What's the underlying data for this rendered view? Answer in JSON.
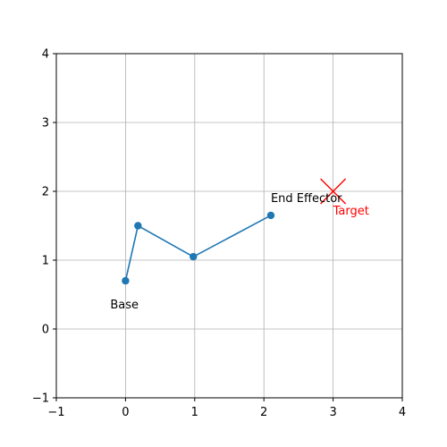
{
  "chart_data": {
    "type": "line",
    "title": "",
    "xlabel": "",
    "ylabel": "",
    "xlim": [
      -1,
      4
    ],
    "ylim": [
      -1,
      4
    ],
    "x_ticks": [
      -1,
      0,
      1,
      2,
      3,
      4
    ],
    "y_ticks": [
      -1,
      0,
      1,
      2,
      3,
      4
    ],
    "grid": true,
    "aspect": "equal",
    "series": [
      {
        "color": "#1f77b4",
        "marker": "circle",
        "points": [
          {
            "x": 0.0,
            "y": 0.7
          },
          {
            "x": 0.18,
            "y": 1.5
          },
          {
            "x": 0.98,
            "y": 1.05
          },
          {
            "x": 2.1,
            "y": 1.65
          }
        ]
      }
    ],
    "target": {
      "x": 3.0,
      "y": 2.0,
      "color": "#ff0000",
      "marker": "x"
    },
    "annotations": [
      {
        "id": "base",
        "text": "Base",
        "anchor_x": 0.0,
        "anchor_y": 0.7,
        "color": "#000000"
      },
      {
        "id": "end-effector",
        "text": "End Effector",
        "anchor_x": 2.1,
        "anchor_y": 1.65,
        "color": "#000000"
      },
      {
        "id": "target",
        "text": "Target",
        "anchor_x": 3.0,
        "anchor_y": 2.0,
        "color": "#ff0000"
      }
    ]
  }
}
